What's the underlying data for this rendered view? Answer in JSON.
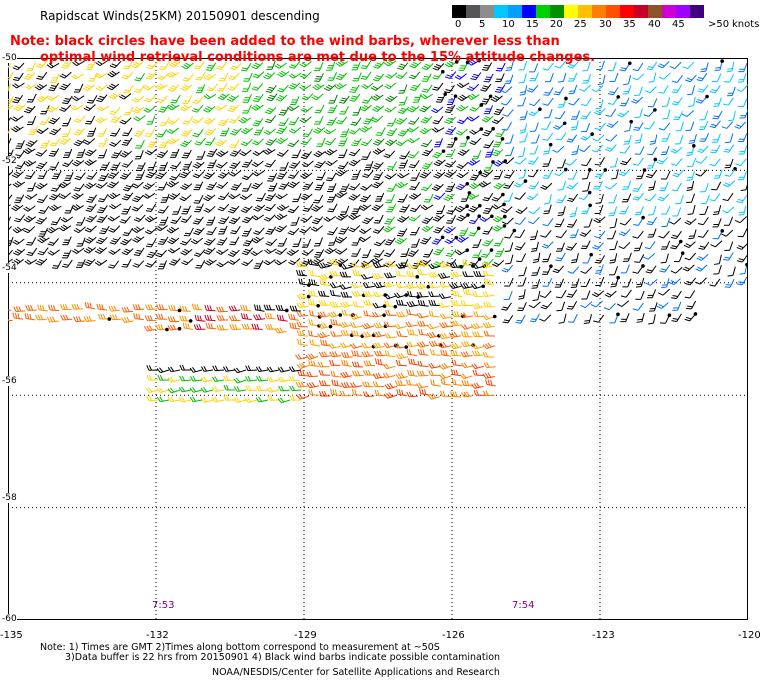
{
  "header": {
    "title": "Rapidscat Winds(25KM) 20150901 descending"
  },
  "legend": {
    "unit": "knots",
    "labels": [
      "0",
      "5",
      "10",
      "15",
      "20",
      "25",
      "30",
      "35",
      "40",
      "45",
      ">50"
    ],
    "colors": [
      "#000000",
      "#555555",
      "#8c8c8c",
      "#00c8ff",
      "#00a0ff",
      "#0000ff",
      "#00d000",
      "#009000",
      "#ffff00",
      "#ffc000",
      "#ff8000",
      "#ff5000",
      "#ff0000",
      "#c80028",
      "#905028",
      "#d000d0",
      "#a000ff",
      "#400080"
    ]
  },
  "note": {
    "line1": "Note: black circles have been added to the wind barbs, wherever less than",
    "line2": "optimal wind retrieval conditions are met due to the 15% attitude changes."
  },
  "chart_data": {
    "type": "map",
    "lon_ticks": [
      "-135",
      "-132",
      "-129",
      "-126",
      "-123",
      "-120"
    ],
    "lat_ticks": [
      "-50",
      "-52",
      "-54",
      "-56",
      "-58",
      "-60"
    ],
    "lon_range": [
      -135,
      -120
    ],
    "lat_range": [
      -60,
      -50
    ],
    "grid": true,
    "times": [
      {
        "label": "7:53",
        "lon": -132
      },
      {
        "label": "7:54",
        "lon": -125.7
      }
    ]
  },
  "footer": {
    "line1": "Note: 1) Times are GMT 2)Times along bottom correspond to measurement at ~50S",
    "line2": "3)Data buffer is 22 hrs from 20150901 4) Black wind barbs indicate possible contamination",
    "line3": "NOAA/NESDIS/Center for Satellite Applications and Research"
  }
}
